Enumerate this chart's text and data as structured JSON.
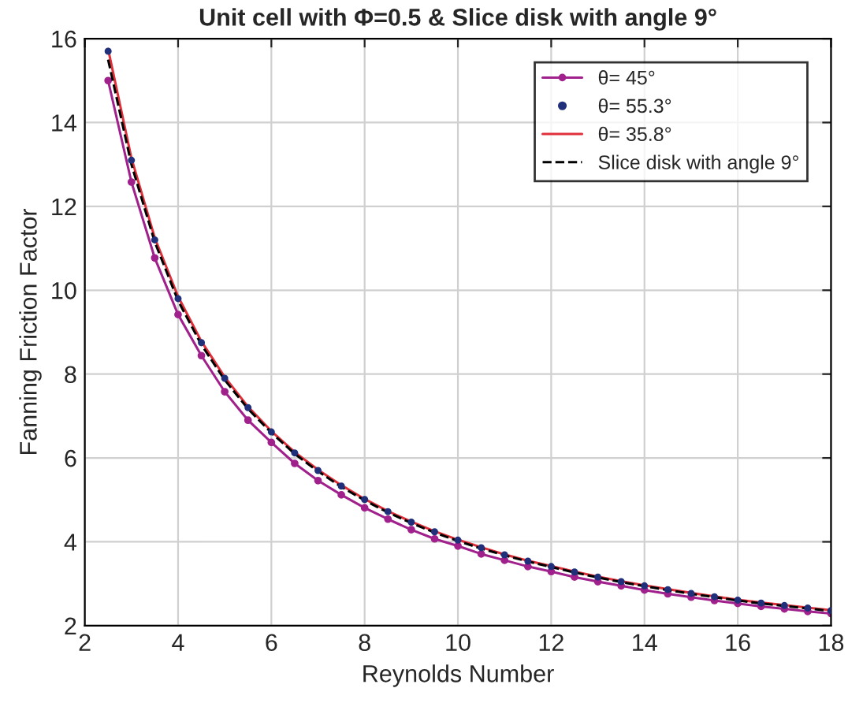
{
  "chart_data": {
    "type": "line",
    "title": "Unit cell with Φ=0.5 & Slice disk with angle 9°",
    "xlabel": "Reynolds Number",
    "ylabel": "Fanning Friction Factor",
    "x": [
      2.5,
      3,
      3.5,
      4,
      4.5,
      5,
      5.5,
      6,
      6.5,
      7,
      7.5,
      8,
      8.5,
      9,
      9.5,
      10,
      10.5,
      11,
      11.5,
      12,
      12.5,
      13,
      13.5,
      14,
      14.5,
      15,
      15.5,
      16,
      16.5,
      17,
      17.5,
      18
    ],
    "series": [
      {
        "name": "θ= 45°",
        "marker": "circle",
        "color": "#a0208c",
        "values": [
          15.0,
          12.58,
          10.77,
          9.42,
          8.44,
          7.58,
          6.9,
          6.37,
          5.87,
          5.46,
          5.12,
          4.81,
          4.54,
          4.29,
          4.07,
          3.9,
          3.71,
          3.56,
          3.41,
          3.29,
          3.16,
          3.05,
          2.95,
          2.85,
          2.76,
          2.68,
          2.6,
          2.53,
          2.46,
          2.4,
          2.34,
          2.29
        ]
      },
      {
        "name": "θ= 55.3°",
        "type": "scatter",
        "marker": "circle",
        "color": "#20307a",
        "values": [
          15.7,
          13.1,
          11.2,
          9.8,
          8.75,
          7.9,
          7.2,
          6.62,
          6.12,
          5.7,
          5.33,
          5.01,
          4.72,
          4.47,
          4.24,
          4.04,
          3.86,
          3.69,
          3.54,
          3.41,
          3.28,
          3.16,
          3.05,
          2.95,
          2.86,
          2.77,
          2.69,
          2.61,
          2.54,
          2.48,
          2.42,
          2.36
        ]
      },
      {
        "name": "θ= 35.8°",
        "line_style": "solid",
        "color": "#e0303a",
        "values": [
          15.75,
          13.15,
          11.25,
          9.85,
          8.78,
          7.93,
          7.22,
          6.64,
          6.14,
          5.72,
          5.35,
          5.02,
          4.73,
          4.48,
          4.25,
          4.05,
          3.87,
          3.7,
          3.55,
          3.42,
          3.29,
          3.17,
          3.06,
          2.96,
          2.87,
          2.78,
          2.7,
          2.62,
          2.55,
          2.49,
          2.43,
          2.37
        ]
      },
      {
        "name": "Slice disk with angle 9°",
        "line_style": "dashed",
        "color": "#000000",
        "values": [
          15.5,
          13.0,
          11.15,
          9.75,
          8.7,
          7.86,
          7.17,
          6.6,
          6.1,
          5.68,
          5.31,
          4.99,
          4.7,
          4.45,
          4.22,
          4.02,
          3.84,
          3.68,
          3.53,
          3.4,
          3.27,
          3.15,
          3.04,
          2.94,
          2.85,
          2.76,
          2.68,
          2.6,
          2.53,
          2.47,
          2.41,
          2.35
        ]
      }
    ],
    "xlim": [
      2,
      18
    ],
    "xticks": [
      2,
      4,
      6,
      8,
      10,
      12,
      14,
      16,
      18
    ],
    "ylim": [
      2,
      16
    ],
    "yticks": [
      2,
      4,
      6,
      8,
      10,
      12,
      14,
      16
    ],
    "grid": true,
    "legend": "top right"
  }
}
